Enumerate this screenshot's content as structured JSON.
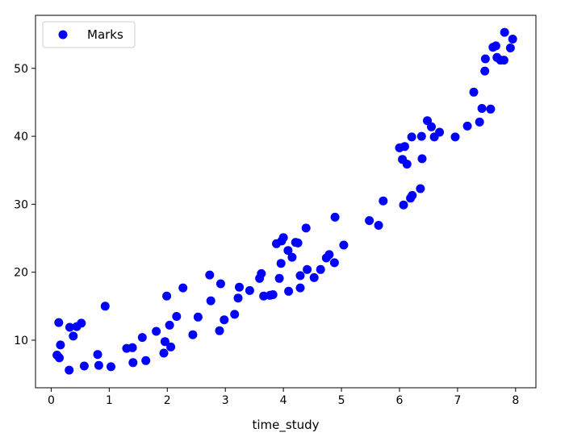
{
  "chart_data": {
    "type": "scatter",
    "title": "",
    "xlabel": "time_study",
    "ylabel": "",
    "xlim": [
      -0.27,
      8.35
    ],
    "ylim": [
      3.0,
      57.8
    ],
    "xticks": [
      0,
      1,
      2,
      3,
      4,
      5,
      6,
      7,
      8
    ],
    "yticks": [
      10,
      20,
      30,
      40,
      50
    ],
    "grid": false,
    "legend_position": "upper-left",
    "series": [
      {
        "name": "Marks",
        "color": "#0000ff",
        "marker": "circle",
        "points": [
          [
            0.1,
            7.8
          ],
          [
            0.13,
            12.6
          ],
          [
            0.14,
            7.4
          ],
          [
            0.16,
            9.3
          ],
          [
            0.31,
            5.6
          ],
          [
            0.32,
            11.9
          ],
          [
            0.38,
            10.6
          ],
          [
            0.44,
            12.0
          ],
          [
            0.52,
            12.5
          ],
          [
            0.57,
            6.2
          ],
          [
            0.8,
            7.9
          ],
          [
            0.82,
            6.3
          ],
          [
            0.93,
            15.0
          ],
          [
            1.03,
            6.1
          ],
          [
            1.3,
            8.8
          ],
          [
            1.4,
            8.9
          ],
          [
            1.41,
            6.7
          ],
          [
            1.57,
            10.4
          ],
          [
            1.63,
            7.0
          ],
          [
            1.81,
            11.3
          ],
          [
            1.94,
            8.1
          ],
          [
            1.96,
            9.8
          ],
          [
            1.99,
            16.5
          ],
          [
            2.04,
            12.2
          ],
          [
            2.06,
            9.0
          ],
          [
            2.16,
            13.5
          ],
          [
            2.27,
            17.7
          ],
          [
            2.44,
            10.8
          ],
          [
            2.53,
            13.4
          ],
          [
            2.73,
            19.6
          ],
          [
            2.75,
            15.8
          ],
          [
            2.9,
            11.4
          ],
          [
            2.92,
            18.3
          ],
          [
            2.98,
            13.0
          ],
          [
            3.16,
            13.8
          ],
          [
            3.22,
            16.2
          ],
          [
            3.24,
            17.8
          ],
          [
            3.42,
            17.3
          ],
          [
            3.59,
            19.1
          ],
          [
            3.62,
            19.8
          ],
          [
            3.66,
            16.5
          ],
          [
            3.77,
            16.6
          ],
          [
            3.82,
            16.7
          ],
          [
            3.88,
            24.2
          ],
          [
            3.93,
            19.1
          ],
          [
            3.96,
            21.3
          ],
          [
            3.97,
            24.6
          ],
          [
            4.0,
            25.1
          ],
          [
            4.08,
            23.2
          ],
          [
            4.09,
            17.2
          ],
          [
            4.15,
            22.2
          ],
          [
            4.21,
            24.4
          ],
          [
            4.25,
            24.3
          ],
          [
            4.29,
            17.7
          ],
          [
            4.29,
            19.5
          ],
          [
            4.39,
            26.5
          ],
          [
            4.41,
            20.4
          ],
          [
            4.53,
            19.2
          ],
          [
            4.64,
            20.4
          ],
          [
            4.74,
            22.1
          ],
          [
            4.79,
            22.6
          ],
          [
            4.88,
            21.4
          ],
          [
            4.89,
            28.1
          ],
          [
            5.04,
            24.0
          ],
          [
            5.48,
            27.6
          ],
          [
            5.64,
            26.9
          ],
          [
            5.72,
            30.5
          ],
          [
            6.0,
            38.3
          ],
          [
            6.05,
            36.6
          ],
          [
            6.07,
            29.9
          ],
          [
            6.09,
            38.5
          ],
          [
            6.13,
            35.9
          ],
          [
            6.19,
            30.9
          ],
          [
            6.21,
            39.9
          ],
          [
            6.22,
            31.3
          ],
          [
            6.36,
            32.3
          ],
          [
            6.38,
            40.0
          ],
          [
            6.39,
            36.7
          ],
          [
            6.48,
            42.3
          ],
          [
            6.55,
            41.4
          ],
          [
            6.6,
            39.9
          ],
          [
            6.69,
            40.6
          ],
          [
            6.96,
            39.9
          ],
          [
            7.17,
            41.5
          ],
          [
            7.28,
            46.5
          ],
          [
            7.38,
            42.1
          ],
          [
            7.42,
            44.1
          ],
          [
            7.47,
            49.6
          ],
          [
            7.48,
            51.4
          ],
          [
            7.57,
            44.0
          ],
          [
            7.61,
            53.1
          ],
          [
            7.66,
            53.3
          ],
          [
            7.68,
            51.6
          ],
          [
            7.74,
            51.2
          ],
          [
            7.8,
            51.2
          ],
          [
            7.81,
            55.3
          ],
          [
            7.91,
            53.0
          ],
          [
            7.95,
            54.3
          ]
        ]
      }
    ]
  }
}
